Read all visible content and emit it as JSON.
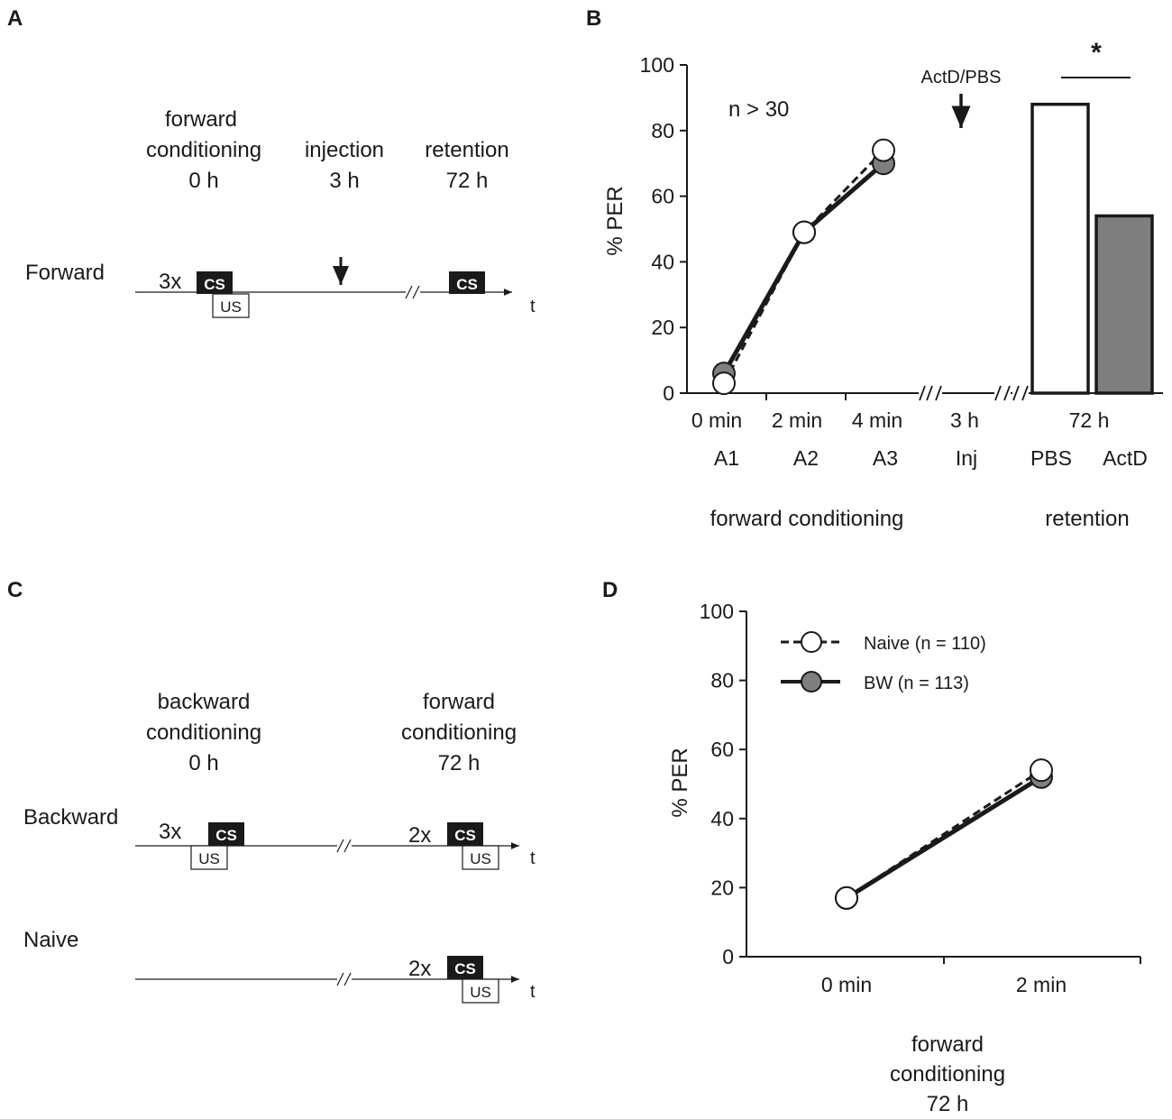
{
  "panels": {
    "A": {
      "letter": "A",
      "headers": [
        {
          "line1": "forward",
          "line2": "conditioning",
          "line3": "0 h"
        },
        {
          "line1": "injection",
          "line2": "3 h"
        },
        {
          "line1": "retention",
          "line2": "72 h"
        }
      ],
      "row_label": "Forward",
      "reps": "3x",
      "cs": "CS",
      "us": "US",
      "axis_t": "t"
    },
    "C": {
      "letter": "C",
      "headers": [
        {
          "line1": "backward",
          "line2": "conditioning",
          "line3": "0 h"
        },
        {
          "line1": "forward",
          "line2": "conditioning",
          "line3": "72 h"
        }
      ],
      "rows": [
        {
          "label": "Backward",
          "reps1": "3x",
          "reps2": "2x"
        },
        {
          "label": "Naive",
          "reps2": "2x"
        }
      ],
      "cs": "CS",
      "us": "US",
      "axis_t": "t"
    }
  },
  "colors": {
    "ink": "#1a1a1a",
    "gray_fill": "#7f7f7f",
    "white_fill": "#ffffff",
    "cs_fill": "#1a1a1a"
  },
  "chart_data": [
    {
      "panel": "B",
      "letter": "B",
      "type": "line",
      "ylabel": "% PER",
      "ylim": [
        0,
        100
      ],
      "yticks": [
        "0",
        "20",
        "40",
        "60",
        "80",
        "100"
      ],
      "annotation": "n > 30",
      "inj_label": "ActD/PBS",
      "tick_labels": [
        "0 min",
        "2 min",
        "4 min",
        "3 h"
      ],
      "sub_labels": [
        "A1",
        "A2",
        "A3",
        "Inj"
      ],
      "group_labels": [
        "forward conditioning",
        "retention"
      ],
      "series": [
        {
          "name": "ActD",
          "style": "solid",
          "fill": "gray",
          "values": [
            6,
            49,
            70
          ]
        },
        {
          "name": "PBS",
          "style": "dashed",
          "fill": "white",
          "values": [
            3,
            49,
            74
          ]
        }
      ],
      "bars": {
        "type": "bar",
        "time_label": "72 h",
        "categories": [
          "PBS",
          "ActD"
        ],
        "values": [
          88,
          54
        ],
        "fills": [
          "white",
          "gray"
        ],
        "significance": "*"
      }
    },
    {
      "panel": "D",
      "letter": "D",
      "type": "line",
      "ylabel": "% PER",
      "ylim": [
        0,
        100
      ],
      "yticks": [
        "0",
        "20",
        "40",
        "60",
        "80",
        "100"
      ],
      "categories": [
        "0 min",
        "2 min"
      ],
      "xlabel_lines": [
        "forward",
        "conditioning",
        "72 h"
      ],
      "series": [
        {
          "name": "BW (n = 113)",
          "style": "solid",
          "fill": "gray",
          "values": [
            17,
            52
          ]
        },
        {
          "name": "Naive (n = 110)",
          "style": "dashed",
          "fill": "white",
          "values": [
            17,
            54
          ]
        }
      ],
      "legend_order": [
        1,
        0
      ],
      "legend_position": "top-left"
    }
  ]
}
